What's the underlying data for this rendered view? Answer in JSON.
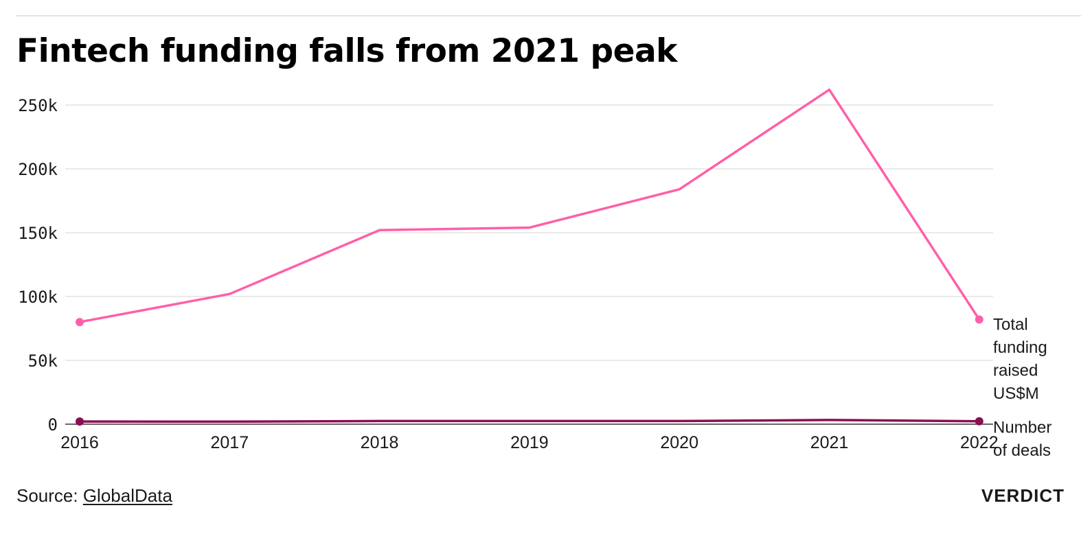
{
  "header": {
    "title": "Fintech funding falls from 2021 peak"
  },
  "footer": {
    "source_prefix": "Source: ",
    "source_link": "GlobalData",
    "brand": "VERDICT"
  },
  "colors": {
    "funding": "#ff5fa8",
    "deals": "#8a0f52",
    "grid": "#e3e3e3",
    "axis": "#333333"
  },
  "chart_data": {
    "type": "line",
    "title": "Fintech funding falls from 2021 peak",
    "xlabel": "",
    "ylabel": "",
    "x": [
      "2016",
      "2017",
      "2018",
      "2019",
      "2020",
      "2021",
      "2022"
    ],
    "ylim": [
      0,
      250000
    ],
    "yticks": [
      0,
      50000,
      100000,
      150000,
      200000,
      250000
    ],
    "ytick_labels": [
      "0",
      "50k",
      "100k",
      "150k",
      "200k",
      "250k"
    ],
    "grid": true,
    "series": [
      {
        "name": "Total funding raised US$M",
        "label_lines": [
          "Total",
          "funding",
          "raised",
          "US$M"
        ],
        "color": "#ff5fa8",
        "values": [
          80000,
          102000,
          152000,
          154000,
          184000,
          262000,
          82000
        ]
      },
      {
        "name": "Number of deals",
        "label_lines": [
          "Number",
          "of deals"
        ],
        "color": "#8a0f52",
        "values": [
          2100,
          2000,
          2500,
          2500,
          2500,
          3300,
          2300
        ]
      }
    ]
  }
}
